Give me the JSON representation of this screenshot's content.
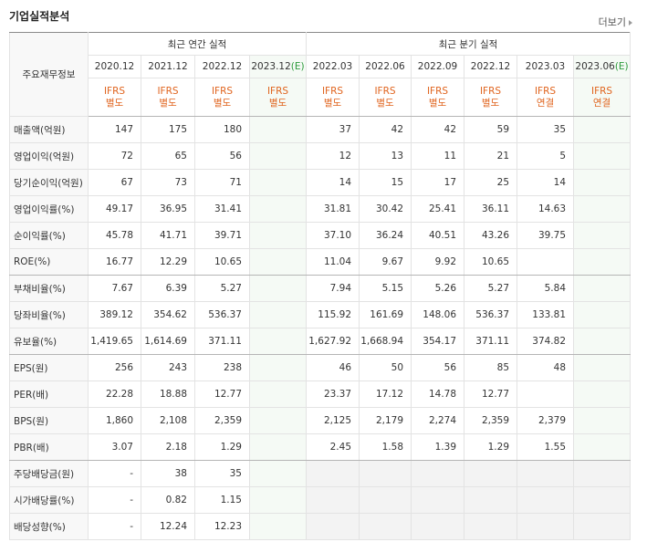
{
  "header": {
    "title": "기업실적분석",
    "more": "더보기"
  },
  "table": {
    "corner": "주요재무정보",
    "groups": [
      {
        "label": "최근 연간 실적",
        "span": 4
      },
      {
        "label": "최근 분기 실적",
        "span": 6
      }
    ],
    "columns": [
      {
        "period": "2020.12",
        "standard": "IFRS",
        "basis": "별도"
      },
      {
        "period": "2021.12",
        "standard": "IFRS",
        "basis": "별도"
      },
      {
        "period": "2022.12",
        "standard": "IFRS",
        "basis": "별도"
      },
      {
        "period": "2023.12",
        "estimate": "(E)",
        "standard": "IFRS",
        "basis": "별도"
      },
      {
        "period": "2022.03",
        "standard": "IFRS",
        "basis": "별도"
      },
      {
        "period": "2022.06",
        "standard": "IFRS",
        "basis": "별도"
      },
      {
        "period": "2022.09",
        "standard": "IFRS",
        "basis": "별도"
      },
      {
        "period": "2022.12",
        "standard": "IFRS",
        "basis": "별도"
      },
      {
        "period": "2023.03",
        "standard": "IFRS",
        "basis": "연결"
      },
      {
        "period": "2023.06",
        "estimate": "(E)",
        "standard": "IFRS",
        "basis": "연결"
      }
    ],
    "rows": [
      {
        "label": "매출액(억원)",
        "cells": [
          "147",
          "175",
          "180",
          null,
          "37",
          "42",
          "42",
          "59",
          "35",
          null
        ]
      },
      {
        "label": "영업이익(억원)",
        "cells": [
          "72",
          "65",
          "56",
          null,
          "12",
          "13",
          "11",
          "21",
          "5",
          null
        ]
      },
      {
        "label": "당기순이익(억원)",
        "cells": [
          "67",
          "73",
          "71",
          null,
          "14",
          "15",
          "17",
          "25",
          "14",
          null
        ]
      },
      {
        "label": "영업이익률(%)",
        "cells": [
          "49.17",
          "36.95",
          "31.41",
          null,
          "31.81",
          "30.42",
          "25.41",
          "36.11",
          "14.63",
          null
        ]
      },
      {
        "label": "순이익률(%)",
        "cells": [
          "45.78",
          "41.71",
          "39.71",
          null,
          "37.10",
          "36.24",
          "40.51",
          "43.26",
          "39.75",
          null
        ]
      },
      {
        "label": "ROE(%)",
        "cells": [
          "16.77",
          "12.29",
          "10.65",
          null,
          "11.04",
          "9.67",
          "9.92",
          "10.65",
          null,
          null
        ]
      },
      {
        "label": "부채비율(%)",
        "cells": [
          "7.67",
          "6.39",
          "5.27",
          null,
          "7.94",
          "5.15",
          "5.26",
          "5.27",
          "5.84",
          null
        ]
      },
      {
        "label": "당좌비율(%)",
        "cells": [
          "389.12",
          "354.62",
          "536.37",
          null,
          "115.92",
          "161.69",
          "148.06",
          "536.37",
          "133.81",
          null
        ]
      },
      {
        "label": "유보율(%)",
        "cells": [
          "1,419.65",
          "1,614.69",
          "371.11",
          null,
          "1,627.92",
          "1,668.94",
          "354.17",
          "371.11",
          "374.82",
          null
        ]
      },
      {
        "label": "EPS(원)",
        "cells": [
          "256",
          "243",
          "238",
          null,
          "46",
          "50",
          "56",
          "85",
          "48",
          null
        ]
      },
      {
        "label": "PER(배)",
        "cells": [
          "22.28",
          "18.88",
          "12.77",
          null,
          "23.37",
          "17.12",
          "14.78",
          "12.77",
          null,
          null
        ]
      },
      {
        "label": "BPS(원)",
        "cells": [
          "1,860",
          "2,108",
          "2,359",
          null,
          "2,125",
          "2,179",
          "2,274",
          "2,359",
          "2,379",
          null
        ]
      },
      {
        "label": "PBR(배)",
        "cells": [
          "3.07",
          "2.18",
          "1.29",
          null,
          "2.45",
          "1.58",
          "1.39",
          "1.29",
          "1.55",
          null
        ]
      },
      {
        "label": "주당배당금(원)",
        "cells": [
          "-",
          "38",
          "35",
          null
        ]
      },
      {
        "label": "시가배당률(%)",
        "cells": [
          "-",
          "0.82",
          "1.15",
          null
        ]
      },
      {
        "label": "배당성향(%)",
        "cells": [
          "-",
          "12.24",
          "12.23",
          null
        ]
      }
    ]
  }
}
